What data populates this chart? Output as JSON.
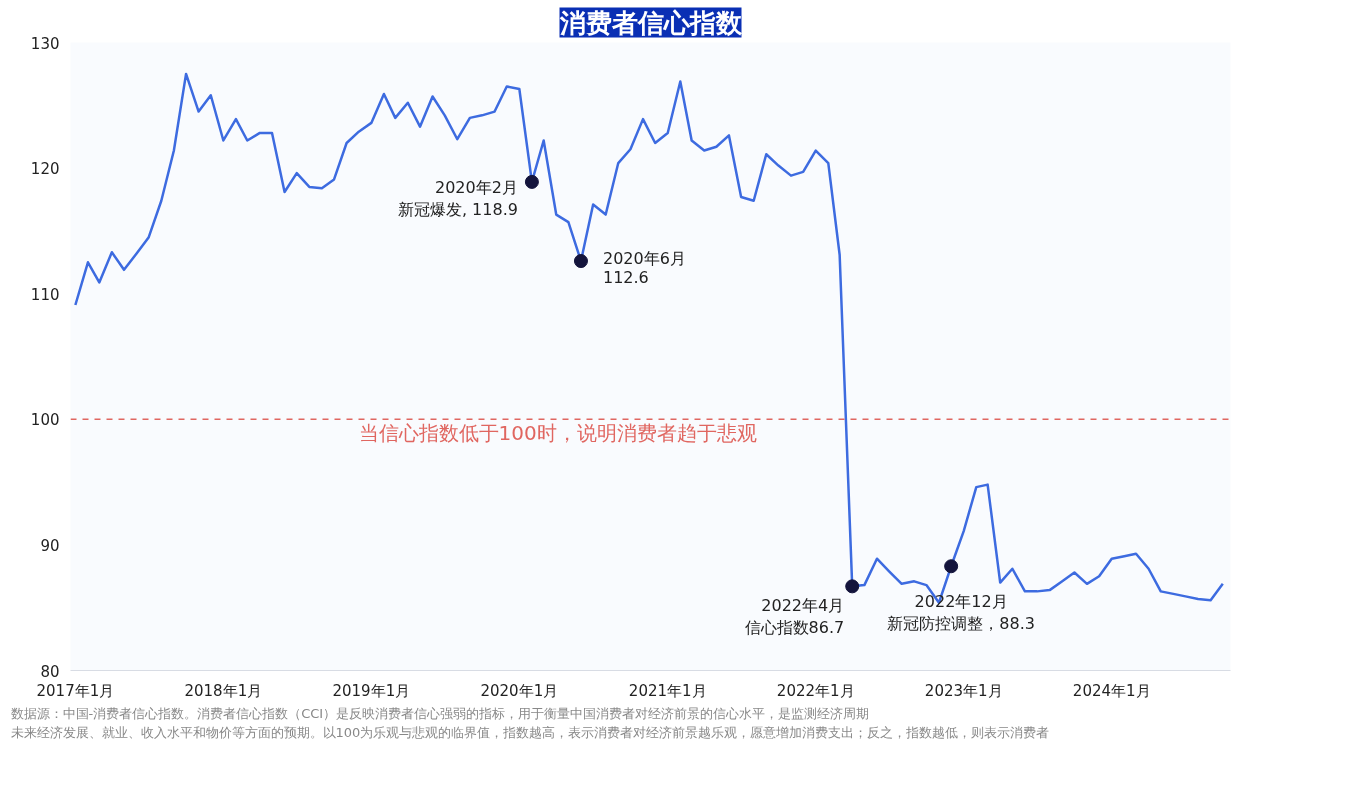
{
  "chart_data": {
    "type": "line",
    "title": "消费者信心指数",
    "x": [
      "2017-01",
      "2017-02",
      "2017-03",
      "2017-04",
      "2017-05",
      "2017-06",
      "2017-07",
      "2017-08",
      "2017-09",
      "2017-10",
      "2017-11",
      "2017-12",
      "2018-01",
      "2018-02",
      "2018-03",
      "2018-04",
      "2018-05",
      "2018-06",
      "2018-07",
      "2018-08",
      "2018-09",
      "2018-10",
      "2018-11",
      "2018-12",
      "2019-01",
      "2019-02",
      "2019-03",
      "2019-04",
      "2019-05",
      "2019-06",
      "2019-07",
      "2019-08",
      "2019-09",
      "2019-10",
      "2019-11",
      "2019-12",
      "2020-01",
      "2020-02",
      "2020-03",
      "2020-04",
      "2020-05",
      "2020-06",
      "2020-07",
      "2020-08",
      "2020-09",
      "2020-10",
      "2020-11",
      "2020-12",
      "2021-01",
      "2021-02",
      "2021-03",
      "2021-04",
      "2021-05",
      "2021-06",
      "2021-07",
      "2021-08",
      "2021-09",
      "2021-10",
      "2021-11",
      "2021-12",
      "2022-01",
      "2022-02",
      "2022-03",
      "2022-04",
      "2022-05",
      "2022-06",
      "2022-07",
      "2022-08",
      "2022-09",
      "2022-10",
      "2022-11",
      "2022-12",
      "2023-01",
      "2023-02",
      "2023-03",
      "2023-04",
      "2023-05",
      "2023-06",
      "2023-07",
      "2023-08",
      "2023-09",
      "2023-10",
      "2023-11",
      "2023-12",
      "2024-01",
      "2024-02",
      "2024-03",
      "2024-04",
      "2024-05",
      "2024-06",
      "2024-07",
      "2024-08",
      "2024-09",
      "2024-10"
    ],
    "series": [
      {
        "color": "#3d6be0",
        "values": [
          109.1,
          112.5,
          110.9,
          113.3,
          111.9,
          113.2,
          114.5,
          117.4,
          121.4,
          127.5,
          124.5,
          125.8,
          122.2,
          123.9,
          122.2,
          122.8,
          122.8,
          118.1,
          119.6,
          118.5,
          118.4,
          119.1,
          122.0,
          122.9,
          123.6,
          125.9,
          124.0,
          125.2,
          123.3,
          125.7,
          124.2,
          122.3,
          124.0,
          124.2,
          124.5,
          126.5,
          126.3,
          118.9,
          122.2,
          116.3,
          115.7,
          112.6,
          117.1,
          116.3,
          120.4,
          121.5,
          123.9,
          122.0,
          122.8,
          126.9,
          122.2,
          121.4,
          121.7,
          122.6,
          117.7,
          117.4,
          121.1,
          120.2,
          119.4,
          119.7,
          121.4,
          120.4,
          113.1,
          86.7,
          86.8,
          88.9,
          87.9,
          86.9,
          87.1,
          86.8,
          85.4,
          88.3,
          91.1,
          94.6,
          94.8,
          87.0,
          88.1,
          86.3,
          86.3,
          86.4,
          87.1,
          87.8,
          86.9,
          87.5,
          88.9,
          89.1,
          89.3,
          88.1,
          86.3,
          86.1,
          85.9,
          85.7,
          85.6,
          86.9
        ]
      }
    ],
    "xlim": [
      "2016-12-20",
      "2024-10-20"
    ],
    "xticks": [
      {
        "value": "2017-01",
        "label": "2017年1月"
      },
      {
        "value": "2018-01",
        "label": "2018年1月"
      },
      {
        "value": "2019-01",
        "label": "2019年1月"
      },
      {
        "value": "2020-01",
        "label": "2020年1月"
      },
      {
        "value": "2021-01",
        "label": "2021年1月"
      },
      {
        "value": "2022-01",
        "label": "2022年1月"
      },
      {
        "value": "2023-01",
        "label": "2023年1月"
      },
      {
        "value": "2024-01",
        "label": "2024年1月"
      }
    ],
    "ylim": [
      80,
      130
    ],
    "yticks": [
      80,
      90,
      100,
      110,
      120,
      130
    ],
    "grid": false,
    "line_style": "solid",
    "marker": "none",
    "ref_lines": [
      {
        "axis": "y",
        "value": 100,
        "label": "当信心指数低于100时，说明消费者趋于悲观",
        "color": "#e06660",
        "line_style": "dashed"
      }
    ],
    "annotations": [
      {
        "text": "2020年2月",
        "x": "2020-02",
        "y": 118.9
      },
      {
        "text": "新冠爆发, 118.9",
        "x": "2020-02",
        "y": 118.9
      },
      {
        "text": "2020年6月",
        "x": "2020-06",
        "y": 112.6
      },
      {
        "text": "112.6",
        "x": "2020-06",
        "y": 112.6
      },
      {
        "text": "2022年4月",
        "x": "2022-04",
        "y": 86.7
      },
      {
        "text": "信心指数86.7",
        "x": "2022-04",
        "y": 86.7
      },
      {
        "text": "2022年12月",
        "x": "2022-12",
        "y": 88.3
      },
      {
        "text": "新冠防控调整，88.3",
        "x": "2022-12",
        "y": 88.3
      },
      "数据源：中国-消费者信心指数。消费者信心指数（CCI）是反映消费者信心强弱的指标，用于衡量中国消费者对经济前景的信心水平，是监测经济周期",
      "未来经济发展、就业、收入水平和物价等方面的预期。以100为乐观与悲观的临界值，指数越高，表示消费者对经济前景越乐观，愿意增加消费支出；反之，指数越低，则表示消费者"
    ]
  }
}
